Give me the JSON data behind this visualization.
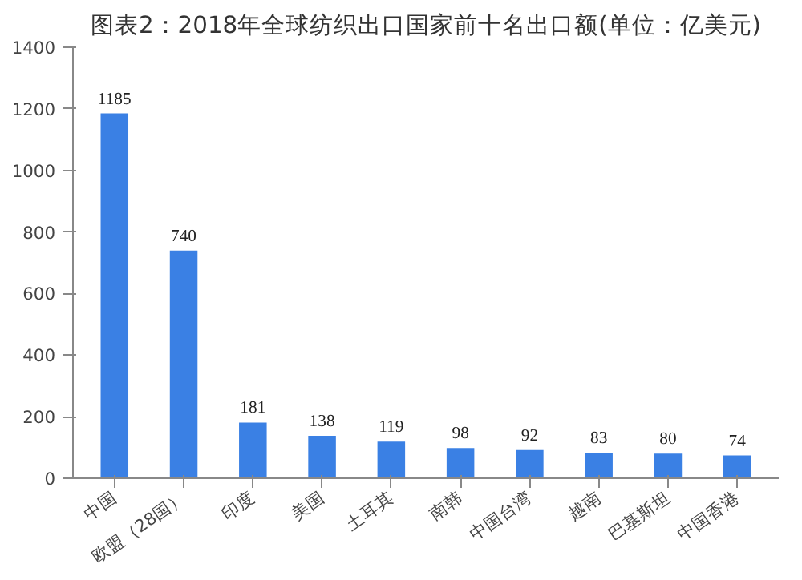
{
  "chart_data": {
    "type": "bar",
    "title": "图表2：2018年全球纺织出口国家前十名出口额(单位：亿美元)",
    "categories": [
      "中国",
      "欧盟（28国）",
      "印度",
      "美国",
      "土耳其",
      "南韩",
      "中国台湾",
      "越南",
      "巴基斯坦",
      "中国香港"
    ],
    "values": [
      1185,
      740,
      181,
      138,
      119,
      98,
      92,
      83,
      80,
      74
    ],
    "color": "#3a80e4",
    "data_labels": true,
    "ylim": [
      0,
      1400
    ],
    "yticks": [
      0,
      200,
      400,
      600,
      800,
      1000,
      1200,
      1400
    ],
    "grid": false
  }
}
